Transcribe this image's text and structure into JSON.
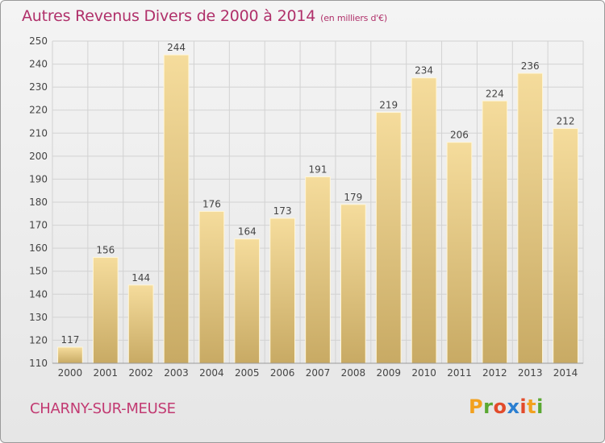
{
  "header": {
    "title": "Autres Revenus Divers de 2000 à 2014",
    "unit": "(en milliers d'€)"
  },
  "footer": {
    "town": "CHARNY-SUR-MEUSE",
    "logo_letters": [
      "P",
      "r",
      "o",
      "x",
      "i",
      "t",
      "i"
    ],
    "logo_colors": [
      "#f2a11f",
      "#5aa832",
      "#e24b2b",
      "#2b7fd1",
      "#e24b2b",
      "#f2a11f",
      "#5aa832"
    ]
  },
  "chart_data": {
    "type": "bar",
    "title": "Autres Revenus Divers de 2000 à 2014",
    "xlabel": "",
    "ylabel": "",
    "categories": [
      "2000",
      "2001",
      "2002",
      "2003",
      "2004",
      "2005",
      "2006",
      "2007",
      "2008",
      "2009",
      "2010",
      "2011",
      "2012",
      "2013",
      "2014"
    ],
    "values": [
      117,
      156,
      144,
      244,
      176,
      164,
      173,
      191,
      179,
      219,
      234,
      206,
      224,
      236,
      212
    ],
    "ylim": [
      110,
      250
    ],
    "yticks": [
      110,
      120,
      130,
      140,
      150,
      160,
      170,
      180,
      190,
      200,
      210,
      220,
      230,
      240,
      250
    ],
    "grid": true,
    "colors": {
      "bar_top": "#f5dc9c",
      "bar_bottom": "#c8aa64",
      "grid": "#d2d2d2",
      "axis_text": "#444444"
    }
  }
}
